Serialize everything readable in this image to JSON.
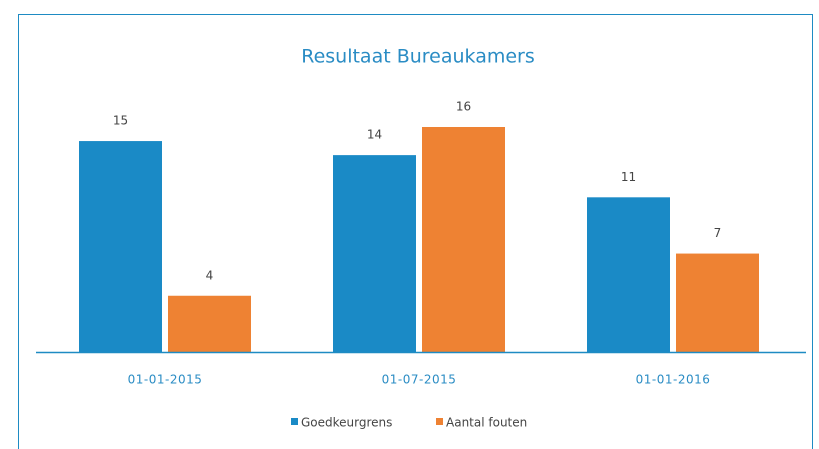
{
  "chart_data": {
    "type": "bar",
    "title": "Resultaat Bureaukamers",
    "categories": [
      "01-01-2015",
      "01-07-2015",
      "01-01-2016"
    ],
    "series": [
      {
        "name": "Goedkeurgrens",
        "color": "#1a8ac6",
        "values": [
          15,
          14,
          11
        ]
      },
      {
        "name": "Aantal fouten",
        "color": "#ee8233",
        "values": [
          4,
          16,
          7
        ]
      }
    ]
  }
}
